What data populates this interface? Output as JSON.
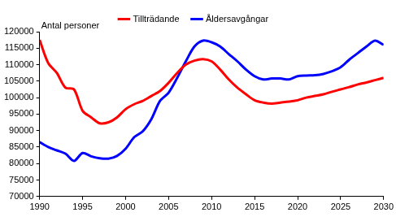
{
  "chart_data": {
    "type": "line",
    "y_label": "Antal personer",
    "x": [
      1990,
      1991,
      1992,
      1993,
      1994,
      1995,
      1996,
      1997,
      1998,
      1999,
      2000,
      2001,
      2002,
      2003,
      2004,
      2005,
      2006,
      2007,
      2008,
      2009,
      2010,
      2011,
      2012,
      2013,
      2014,
      2015,
      2016,
      2017,
      2018,
      2019,
      2020,
      2021,
      2022,
      2023,
      2024,
      2025,
      2026,
      2027,
      2028,
      2029,
      2030
    ],
    "series": [
      {
        "name": "Tillträdande",
        "color": "#ff0000",
        "values": [
          117500,
          110500,
          107500,
          103000,
          102500,
          96000,
          94000,
          92200,
          92500,
          94000,
          96500,
          98000,
          99000,
          100500,
          102000,
          104500,
          107500,
          110000,
          111200,
          111700,
          111000,
          108500,
          105500,
          103000,
          101000,
          99200,
          98500,
          98200,
          98500,
          98800,
          99200,
          100000,
          100500,
          101000,
          101800,
          102500,
          103200,
          104000,
          104600,
          105300,
          106000
        ]
      },
      {
        "name": "Åldersavgångar",
        "color": "#0000ff",
        "values": [
          86500,
          85000,
          84000,
          83000,
          80800,
          83200,
          82200,
          81600,
          81500,
          82300,
          84500,
          88000,
          89800,
          93500,
          99000,
          101500,
          106000,
          111000,
          115500,
          117300,
          116800,
          115500,
          113200,
          111000,
          108500,
          106500,
          105500,
          105800,
          105800,
          105500,
          106500,
          106700,
          106800,
          107200,
          108000,
          109200,
          111500,
          113500,
          115500,
          117300,
          116000
        ]
      }
    ],
    "xlim": [
      1990,
      2030
    ],
    "xticks": [
      1990,
      1995,
      2000,
      2005,
      2010,
      2015,
      2020,
      2025,
      2030
    ],
    "ylim": [
      70000,
      120000
    ],
    "yticks": [
      70000,
      75000,
      80000,
      85000,
      90000,
      95000,
      100000,
      105000,
      110000,
      115000,
      120000
    ],
    "grid": false,
    "legend": "top"
  }
}
